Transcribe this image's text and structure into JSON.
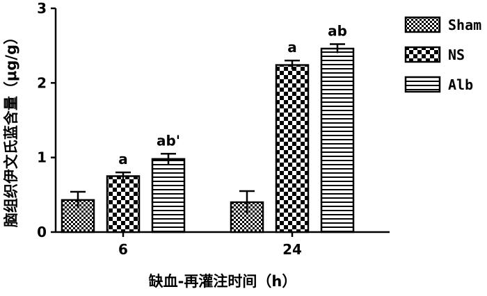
{
  "chart_data": {
    "type": "bar",
    "title": "",
    "xlabel": "缺血-再灌注时间（h）",
    "ylabel": "脑组织伊文氏蓝含量（μg/g）",
    "categories": [
      "6",
      "24"
    ],
    "ylim": [
      0,
      3
    ],
    "yticks": [
      "0",
      "1",
      "2",
      "3"
    ],
    "series": [
      {
        "name": "Sham",
        "pattern": "fine-check",
        "values": [
          0.43,
          0.4
        ],
        "errors": [
          0.11,
          0.15
        ],
        "labels": [
          "",
          ""
        ]
      },
      {
        "name": "NS",
        "pattern": "coarse-check",
        "values": [
          0.75,
          2.24
        ],
        "errors": [
          0.05,
          0.06
        ],
        "labels": [
          "a",
          "a"
        ]
      },
      {
        "name": "Alb",
        "pattern": "horizontal-lines",
        "values": [
          0.98,
          2.46
        ],
        "errors": [
          0.07,
          0.06
        ],
        "labels": [
          "ab'",
          "ab"
        ]
      }
    ],
    "legend_position": "top-right",
    "grid": false
  }
}
